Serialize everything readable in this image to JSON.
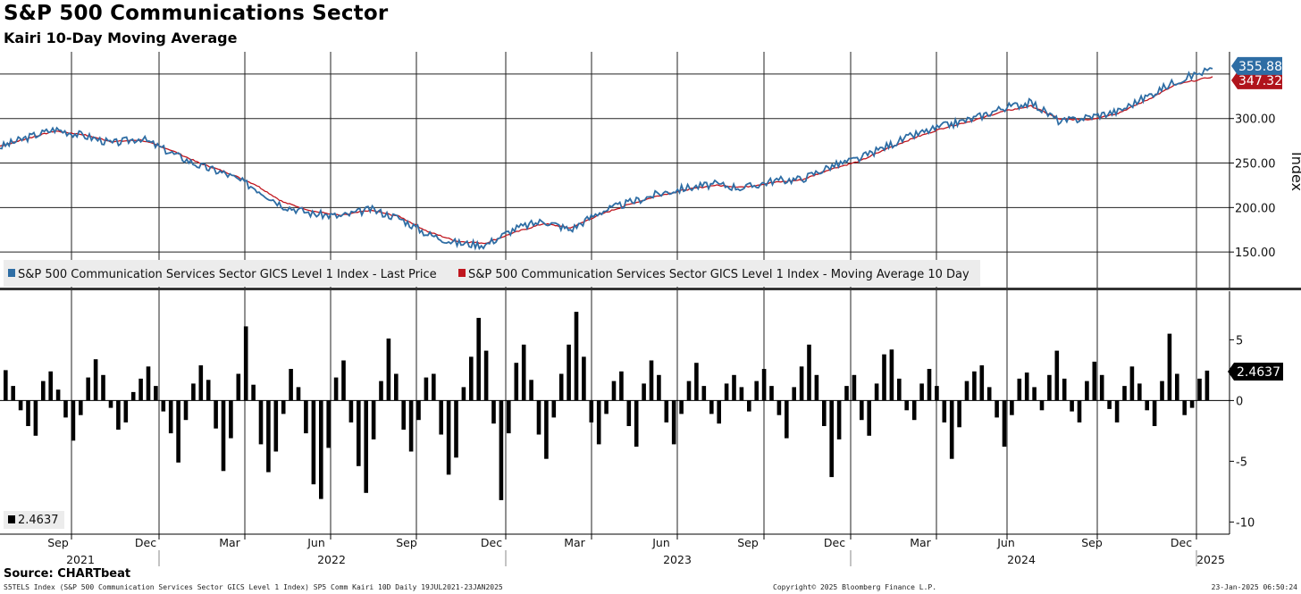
{
  "header": {
    "title": "S&P 500 Communications Sector",
    "subtitle": "Kairi 10-Day Moving Average"
  },
  "footer": {
    "source": "Source: CHARTbeat",
    "left": "S5TELS Index (S&P 500 Communication Services Sector GICS Level 1 Index) SP5 Comm Kairi 10D  Daily 19JUL2021-23JAN2025",
    "center": "Copyright© 2025 Bloomberg Finance L.P.",
    "right": "23-Jan-2025 06:50:24"
  },
  "colors": {
    "price_line": "#2e6da4",
    "ma_line": "#c0161e",
    "kairi_bars": "#000000",
    "grid": "#222222",
    "label_price_bg": "#2e6da4",
    "label_ma_bg": "#b0141c",
    "label_kairi_bg": "#000000"
  },
  "chart_data": [
    {
      "type": "line",
      "panel": "top",
      "ylabel": "Index",
      "ylim": [
        110,
        375
      ],
      "yticks": [
        "150.00",
        "200.00",
        "250.00",
        "300.00"
      ],
      "grid": true,
      "legend_position": "bottom-left",
      "x": [
        "2021-07-19",
        "2021-08-15",
        "2021-09-15",
        "2021-10-15",
        "2021-11-15",
        "2021-12-15",
        "2022-01-15",
        "2022-02-15",
        "2022-03-15",
        "2022-04-15",
        "2022-05-15",
        "2022-06-15",
        "2022-07-15",
        "2022-08-15",
        "2022-09-15",
        "2022-10-15",
        "2022-11-15",
        "2022-12-15",
        "2023-01-15",
        "2023-02-15",
        "2023-03-15",
        "2023-04-15",
        "2023-05-15",
        "2023-06-15",
        "2023-07-15",
        "2023-08-15",
        "2023-09-15",
        "2023-10-15",
        "2023-11-15",
        "2023-12-15",
        "2024-01-15",
        "2024-02-15",
        "2024-03-15",
        "2024-04-15",
        "2024-05-15",
        "2024-06-15",
        "2024-07-15",
        "2024-08-15",
        "2024-09-15",
        "2024-10-15",
        "2024-11-15",
        "2024-12-15",
        "2025-01-23"
      ],
      "series": [
        {
          "name": "S&P 500 Communication Services Sector GICS Level 1 Index - Last Price",
          "last_value_label": "355.88",
          "values": [
            268,
            278,
            288,
            281,
            272,
            278,
            262,
            247,
            238,
            222,
            202,
            193,
            190,
            198,
            188,
            170,
            160,
            158,
            176,
            185,
            175,
            195,
            205,
            215,
            222,
            226,
            222,
            230,
            232,
            246,
            255,
            270,
            282,
            292,
            300,
            312,
            318,
            296,
            302,
            308,
            325,
            342,
            356
          ]
        },
        {
          "name": "S&P 500 Communication Services Sector GICS Level 1 Index - Moving Average 10 Day",
          "last_value_label": "347.32",
          "values": [
            269,
            277,
            286,
            282,
            274,
            276,
            265,
            250,
            240,
            226,
            206,
            196,
            191,
            197,
            190,
            173,
            162,
            160,
            172,
            182,
            177,
            192,
            203,
            213,
            220,
            225,
            223,
            228,
            231,
            243,
            252,
            267,
            279,
            290,
            298,
            308,
            314,
            299,
            299,
            306,
            321,
            338,
            347
          ]
        }
      ]
    },
    {
      "type": "bar",
      "panel": "bottom",
      "ylim": [
        -11,
        9
      ],
      "yticks": [
        "5",
        "0",
        "-5",
        "-10"
      ],
      "grid": true,
      "series": [
        {
          "name": "2.4637",
          "last_value_label": "2.4637",
          "values": [
            2.5,
            1.2,
            -0.8,
            -2.1,
            -2.9,
            1.6,
            2.4,
            0.9,
            -1.4,
            -3.3,
            -1.2,
            1.9,
            3.4,
            2.1,
            -0.6,
            -2.4,
            -1.8,
            0.7,
            1.8,
            2.8,
            1.2,
            -0.9,
            -2.7,
            -5.1,
            -1.6,
            1.4,
            2.9,
            1.7,
            -2.3,
            -5.8,
            -3.1,
            2.2,
            6.1,
            1.3,
            -3.6,
            -5.9,
            -4.2,
            -1.1,
            2.6,
            1.1,
            -2.7,
            -6.9,
            -8.1,
            -3.9,
            1.9,
            3.3,
            -1.8,
            -5.4,
            -7.6,
            -3.2,
            1.6,
            5.1,
            2.2,
            -2.4,
            -4.2,
            -1.6,
            1.9,
            2.2,
            -2.8,
            -6.1,
            -4.7,
            1.1,
            3.6,
            6.8,
            4.1,
            -1.9,
            -8.2,
            -2.7,
            3.1,
            4.6,
            1.7,
            -2.8,
            -4.8,
            -1.4,
            2.2,
            4.6,
            7.3,
            3.6,
            -1.8,
            -3.6,
            -1.1,
            1.6,
            2.4,
            -2.1,
            -3.8,
            1.4,
            3.3,
            2.1,
            -1.8,
            -3.6,
            -1.1,
            1.6,
            3.1,
            1.2,
            -1.1,
            -1.9,
            1.4,
            2.1,
            1.1,
            -0.9,
            1.6,
            2.6,
            1.2,
            -1.2,
            -3.1,
            1.1,
            2.8,
            4.6,
            2.1,
            -2.1,
            -6.3,
            -3.2,
            1.2,
            2.1,
            -1.6,
            -2.9,
            1.4,
            3.8,
            4.2,
            1.8,
            -0.8,
            -1.6,
            1.4,
            2.6,
            1.2,
            -1.8,
            -4.8,
            -2.2,
            1.6,
            2.4,
            2.9,
            1.1,
            -1.4,
            -3.8,
            -1.2,
            1.8,
            2.3,
            1.1,
            -0.8,
            2.1,
            4.1,
            1.8,
            -0.9,
            -1.8,
            1.6,
            3.2,
            2.1,
            -0.7,
            -1.8,
            1.2,
            2.8,
            1.4,
            -0.8,
            -2.1,
            1.6,
            5.5,
            2.2,
            -1.2,
            -0.6,
            1.8,
            2.46
          ]
        }
      ]
    }
  ],
  "x_axis": {
    "months": [
      "Sep",
      "Dec",
      "Mar",
      "Jun",
      "Sep",
      "Dec",
      "Mar",
      "Jun",
      "Sep",
      "Dec",
      "Mar",
      "Jun",
      "Sep",
      "Dec"
    ],
    "years": [
      "2021",
      "2022",
      "2023",
      "2024",
      "2025"
    ]
  }
}
